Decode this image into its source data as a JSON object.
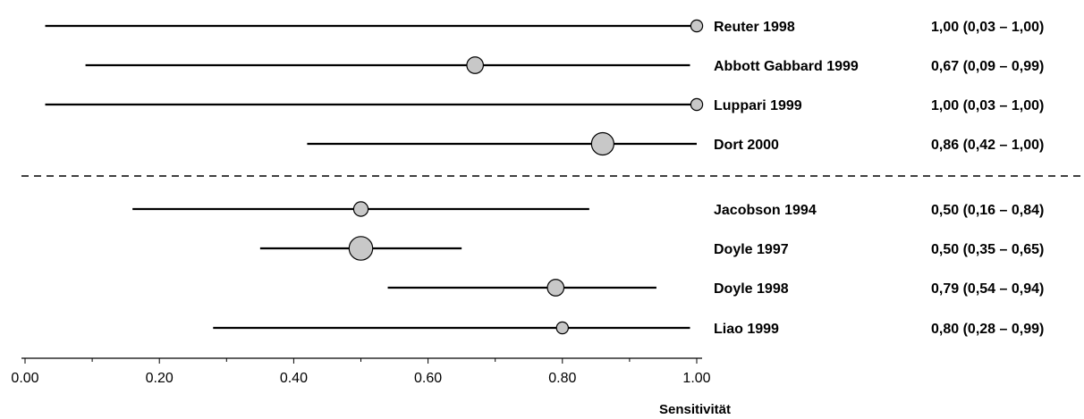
{
  "chart_data": {
    "type": "forest",
    "xlabel": "Sensitivität",
    "xlim": [
      0,
      1
    ],
    "xticks": [
      "0.00",
      "0.20",
      "0.40",
      "0.60",
      "0.80",
      "1.00"
    ],
    "minor_ticks": true,
    "grid": false,
    "groups": [
      {
        "studies": [
          {
            "label": "Reuter 1998",
            "estimate": 1.0,
            "lower": 0.03,
            "upper": 1.0,
            "ci_text": "1,00 (0,03 – 1,00)",
            "weight": 1
          },
          {
            "label": "Abbott Gabbard 1999",
            "estimate": 0.67,
            "lower": 0.09,
            "upper": 0.99,
            "ci_text": "0,67 (0,09 – 0,99)",
            "weight": 3
          },
          {
            "label": "Luppari 1999",
            "estimate": 1.0,
            "lower": 0.03,
            "upper": 1.0,
            "ci_text": "1,00 (0,03 – 1,00)",
            "weight": 1
          },
          {
            "label": "Dort 2000",
            "estimate": 0.86,
            "lower": 0.42,
            "upper": 1.0,
            "ci_text": "0,86 (0,42 – 1,00)",
            "weight": 7
          }
        ]
      },
      {
        "studies": [
          {
            "label": "Jacobson 1994",
            "estimate": 0.5,
            "lower": 0.16,
            "upper": 0.84,
            "ci_text": "0,50 (0,16 – 0,84)",
            "weight": 2
          },
          {
            "label": "Doyle 1997",
            "estimate": 0.5,
            "lower": 0.35,
            "upper": 0.65,
            "ci_text": "0,50 (0,35 – 0,65)",
            "weight": 8
          },
          {
            "label": "Doyle 1998",
            "estimate": 0.79,
            "lower": 0.54,
            "upper": 0.94,
            "ci_text": "0,79 (0,54 – 0,94)",
            "weight": 3
          },
          {
            "label": "Liao 1999",
            "estimate": 0.8,
            "lower": 0.28,
            "upper": 0.99,
            "ci_text": "0,80 (0,28 – 0,99)",
            "weight": 1
          }
        ]
      }
    ],
    "marker_color": "#c8c8c8",
    "line_color": "#000000"
  }
}
